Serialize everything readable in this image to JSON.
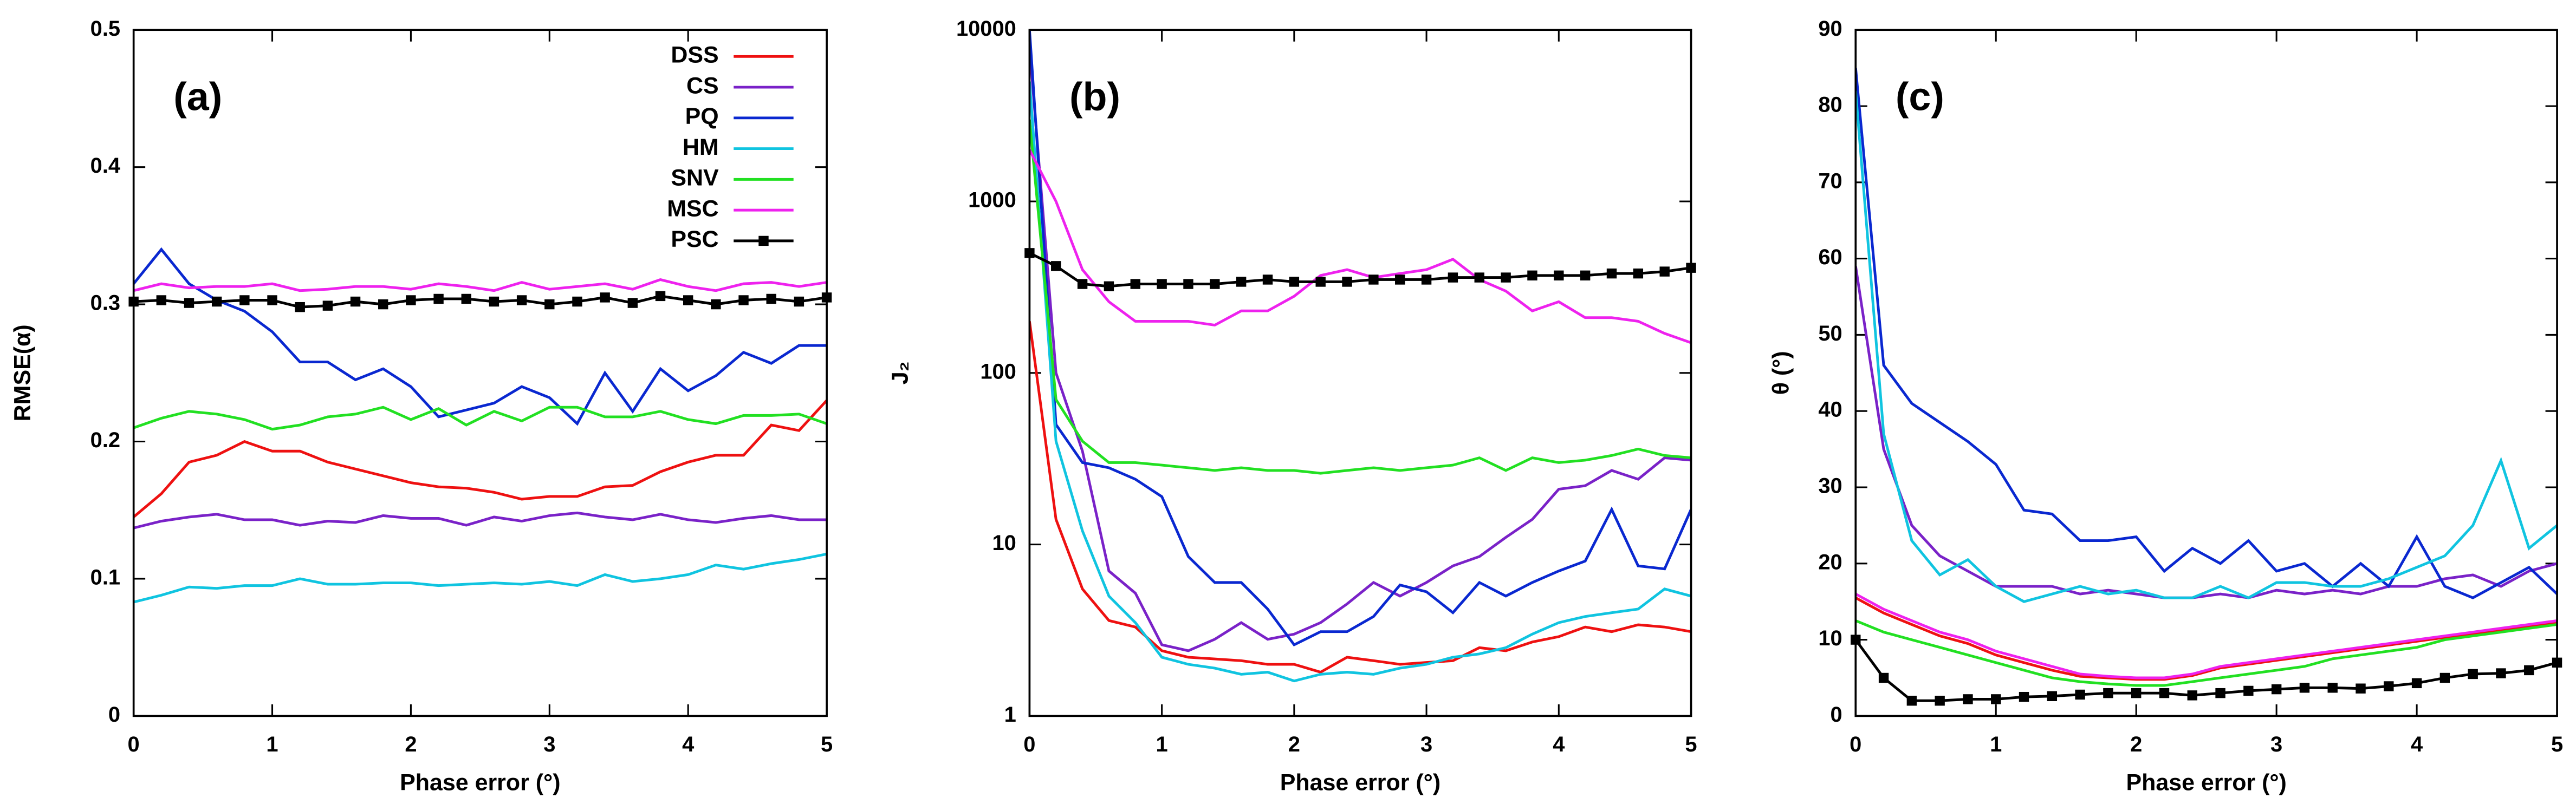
{
  "chart_data": [
    {
      "type": "line",
      "title": "(a)",
      "xlabel": "Phase error (°)",
      "ylabel": "RMSE(α)",
      "x": [
        0,
        0.2,
        0.4,
        0.6,
        0.8,
        1,
        1.2,
        1.4,
        1.6,
        1.8,
        2,
        2.2,
        2.4,
        2.6,
        2.8,
        3,
        3.2,
        3.4,
        3.6,
        3.8,
        4,
        4.2,
        4.4,
        4.6,
        4.8,
        5
      ],
      "xlim": [
        0,
        5
      ],
      "xticks": [
        0,
        1,
        2,
        3,
        4,
        5
      ],
      "ylim": [
        0,
        0.5
      ],
      "yticks": [
        0,
        0.1,
        0.2,
        0.3,
        0.4,
        0.5
      ],
      "log": false,
      "legend": "top-right",
      "series": [
        {
          "name": "DSS",
          "color": "#ee1111",
          "values": [
            0.145,
            0.162,
            0.185,
            0.19,
            0.2,
            0.193,
            0.193,
            0.185,
            0.18,
            0.175,
            0.17,
            0.167,
            0.166,
            0.163,
            0.158,
            0.16,
            0.16,
            0.167,
            0.168,
            0.178,
            0.185,
            0.19,
            0.19,
            0.212,
            0.208,
            0.23
          ]
        },
        {
          "name": "CS",
          "color": "#7a22c8",
          "values": [
            0.137,
            0.142,
            0.145,
            0.147,
            0.143,
            0.143,
            0.139,
            0.142,
            0.141,
            0.146,
            0.144,
            0.144,
            0.139,
            0.145,
            0.142,
            0.146,
            0.148,
            0.145,
            0.143,
            0.147,
            0.143,
            0.141,
            0.144,
            0.146,
            0.143,
            0.143
          ]
        },
        {
          "name": "PQ",
          "color": "#0a28d0",
          "values": [
            0.315,
            0.34,
            0.315,
            0.303,
            0.295,
            0.28,
            0.258,
            0.258,
            0.245,
            0.253,
            0.24,
            0.218,
            0.223,
            0.228,
            0.24,
            0.232,
            0.213,
            0.25,
            0.222,
            0.253,
            0.237,
            0.248,
            0.265,
            0.257,
            0.27,
            0.27
          ]
        },
        {
          "name": "HM",
          "color": "#10c4e0",
          "values": [
            0.083,
            0.088,
            0.094,
            0.093,
            0.095,
            0.095,
            0.1,
            0.096,
            0.096,
            0.097,
            0.097,
            0.095,
            0.096,
            0.097,
            0.096,
            0.098,
            0.095,
            0.103,
            0.098,
            0.1,
            0.103,
            0.11,
            0.107,
            0.111,
            0.114,
            0.118
          ]
        },
        {
          "name": "SNV",
          "color": "#22e022",
          "values": [
            0.21,
            0.217,
            0.222,
            0.22,
            0.216,
            0.209,
            0.212,
            0.218,
            0.22,
            0.225,
            0.216,
            0.224,
            0.212,
            0.222,
            0.215,
            0.225,
            0.225,
            0.218,
            0.218,
            0.222,
            0.216,
            0.213,
            0.219,
            0.219,
            0.22,
            0.213
          ]
        },
        {
          "name": "MSC",
          "color": "#ee22ee",
          "values": [
            0.31,
            0.315,
            0.312,
            0.313,
            0.313,
            0.315,
            0.31,
            0.311,
            0.313,
            0.313,
            0.311,
            0.315,
            0.313,
            0.31,
            0.316,
            0.311,
            0.313,
            0.315,
            0.311,
            0.318,
            0.313,
            0.31,
            0.315,
            0.316,
            0.313,
            0.316
          ]
        },
        {
          "name": "PSC",
          "color": "#000000",
          "marker": "square",
          "values": [
            0.302,
            0.303,
            0.301,
            0.302,
            0.303,
            0.303,
            0.298,
            0.299,
            0.302,
            0.3,
            0.303,
            0.304,
            0.304,
            0.302,
            0.303,
            0.3,
            0.302,
            0.305,
            0.301,
            0.306,
            0.303,
            0.3,
            0.303,
            0.304,
            0.302,
            0.305
          ]
        }
      ]
    },
    {
      "type": "line",
      "title": "(b)",
      "xlabel": "Phase error (°)",
      "ylabel": "J₂",
      "x": [
        0,
        0.2,
        0.4,
        0.6,
        0.8,
        1,
        1.2,
        1.4,
        1.6,
        1.8,
        2,
        2.2,
        2.4,
        2.6,
        2.8,
        3,
        3.2,
        3.4,
        3.6,
        3.8,
        4,
        4.2,
        4.4,
        4.6,
        4.8,
        5
      ],
      "xlim": [
        0,
        5
      ],
      "xticks": [
        0,
        1,
        2,
        3,
        4,
        5
      ],
      "ylim": [
        1,
        10000
      ],
      "yticks": [
        1,
        10,
        100,
        1000,
        10000
      ],
      "log": true,
      "series": [
        {
          "color": "#ee1111",
          "values": [
            200,
            14,
            5.5,
            3.6,
            3.3,
            2.4,
            2.2,
            2.15,
            2.1,
            2.0,
            2.0,
            1.8,
            2.2,
            2.1,
            2.0,
            2.05,
            2.1,
            2.5,
            2.4,
            2.7,
            2.9,
            3.3,
            3.1,
            3.4,
            3.3,
            3.1
          ]
        },
        {
          "color": "#7a22c8",
          "values": [
            8000,
            100,
            35,
            7,
            5.2,
            2.6,
            2.4,
            2.8,
            3.5,
            2.8,
            3.0,
            3.5,
            4.5,
            6,
            5,
            6,
            7.5,
            8.5,
            11,
            14,
            21,
            22,
            27,
            24,
            32,
            31
          ]
        },
        {
          "color": "#0a28d0",
          "values": [
            10000,
            50,
            30,
            28,
            24,
            19,
            8.5,
            6,
            6,
            4.2,
            2.6,
            3.1,
            3.1,
            3.8,
            5.8,
            5.3,
            4,
            6,
            5,
            6,
            7,
            8,
            16,
            7.5,
            7.2,
            16
          ]
        },
        {
          "color": "#10c4e0",
          "values": [
            5000,
            40,
            12,
            5,
            3.5,
            2.2,
            2.0,
            1.9,
            1.75,
            1.8,
            1.6,
            1.75,
            1.8,
            1.75,
            1.9,
            2.0,
            2.2,
            2.3,
            2.5,
            3,
            3.5,
            3.8,
            4,
            4.2,
            5.5,
            5
          ]
        },
        {
          "color": "#22e022",
          "values": [
            3000,
            70,
            40,
            30,
            30,
            29,
            28,
            27,
            28,
            27,
            27,
            26,
            27,
            28,
            27,
            28,
            29,
            32,
            27,
            32,
            30,
            31,
            33,
            36,
            33,
            32
          ]
        },
        {
          "color": "#ee22ee",
          "values": [
            2000,
            1000,
            400,
            260,
            200,
            200,
            200,
            190,
            230,
            230,
            280,
            370,
            400,
            360,
            380,
            400,
            460,
            350,
            300,
            230,
            260,
            210,
            210,
            200,
            170,
            150
          ]
        },
        {
          "color": "#000000",
          "marker": "square",
          "values": [
            500,
            420,
            330,
            320,
            330,
            330,
            330,
            330,
            340,
            350,
            340,
            340,
            340,
            350,
            350,
            350,
            360,
            360,
            360,
            370,
            370,
            370,
            380,
            380,
            390,
            410
          ]
        }
      ]
    },
    {
      "type": "line",
      "title": "(c)",
      "xlabel": "Phase error (°)",
      "ylabel": "θ (°)",
      "x": [
        0,
        0.2,
        0.4,
        0.6,
        0.8,
        1,
        1.2,
        1.4,
        1.6,
        1.8,
        2,
        2.2,
        2.4,
        2.6,
        2.8,
        3,
        3.2,
        3.4,
        3.6,
        3.8,
        4,
        4.2,
        4.4,
        4.6,
        4.8,
        5
      ],
      "xlim": [
        0,
        5
      ],
      "xticks": [
        0,
        1,
        2,
        3,
        4,
        5
      ],
      "ylim": [
        0,
        90
      ],
      "yticks": [
        0,
        10,
        20,
        30,
        40,
        50,
        60,
        70,
        80,
        90
      ],
      "log": false,
      "series": [
        {
          "color": "#ee1111",
          "values": [
            15.5,
            13.5,
            12,
            10.5,
            9.5,
            8,
            7,
            6,
            5.2,
            5,
            4.8,
            4.8,
            5.3,
            6.3,
            6.8,
            7.3,
            7.8,
            8.3,
            8.8,
            9.3,
            9.8,
            10.3,
            10.8,
            11.3,
            11.8,
            12.3
          ]
        },
        {
          "color": "#7a22c8",
          "values": [
            59,
            35,
            25,
            21,
            19,
            17,
            17,
            17,
            16,
            16.5,
            16,
            15.5,
            15.5,
            16,
            15.5,
            16.5,
            16,
            16.5,
            16,
            17,
            17,
            18,
            18.5,
            17,
            19,
            20
          ]
        },
        {
          "color": "#0a28d0",
          "values": [
            85,
            46,
            41,
            38.5,
            36,
            33,
            27,
            26.5,
            23,
            23,
            23.5,
            19,
            22,
            20,
            23,
            19,
            20,
            17,
            20,
            17,
            23.5,
            17,
            15.5,
            17.5,
            19.5,
            16
          ]
        },
        {
          "color": "#10c4e0",
          "values": [
            82,
            37,
            23,
            18.5,
            20.5,
            17,
            15,
            16,
            17,
            16,
            16.5,
            15.5,
            15.5,
            17,
            15.5,
            17.5,
            17.5,
            17,
            17,
            18,
            19.5,
            21,
            25,
            33.5,
            22,
            25
          ]
        },
        {
          "color": "#22e022",
          "values": [
            12.5,
            11,
            10,
            9,
            8,
            7,
            6,
            5,
            4.5,
            4.2,
            4,
            4,
            4.5,
            5,
            5.5,
            6,
            6.5,
            7.5,
            8,
            8.5,
            9,
            10,
            10.5,
            11,
            11.5,
            12
          ]
        },
        {
          "color": "#ee22ee",
          "values": [
            16,
            14,
            12.5,
            11,
            10,
            8.5,
            7.5,
            6.5,
            5.5,
            5.2,
            5,
            5,
            5.5,
            6.5,
            7,
            7.5,
            8,
            8.5,
            9,
            9.5,
            10,
            10.5,
            11,
            11.5,
            12,
            12.5
          ]
        },
        {
          "color": "#000000",
          "marker": "square",
          "values": [
            10,
            5,
            2,
            2,
            2.2,
            2.2,
            2.5,
            2.6,
            2.8,
            3,
            3,
            3,
            2.7,
            3,
            3.3,
            3.5,
            3.7,
            3.7,
            3.6,
            3.9,
            4.3,
            5,
            5.5,
            5.6,
            6,
            7
          ]
        }
      ]
    }
  ]
}
